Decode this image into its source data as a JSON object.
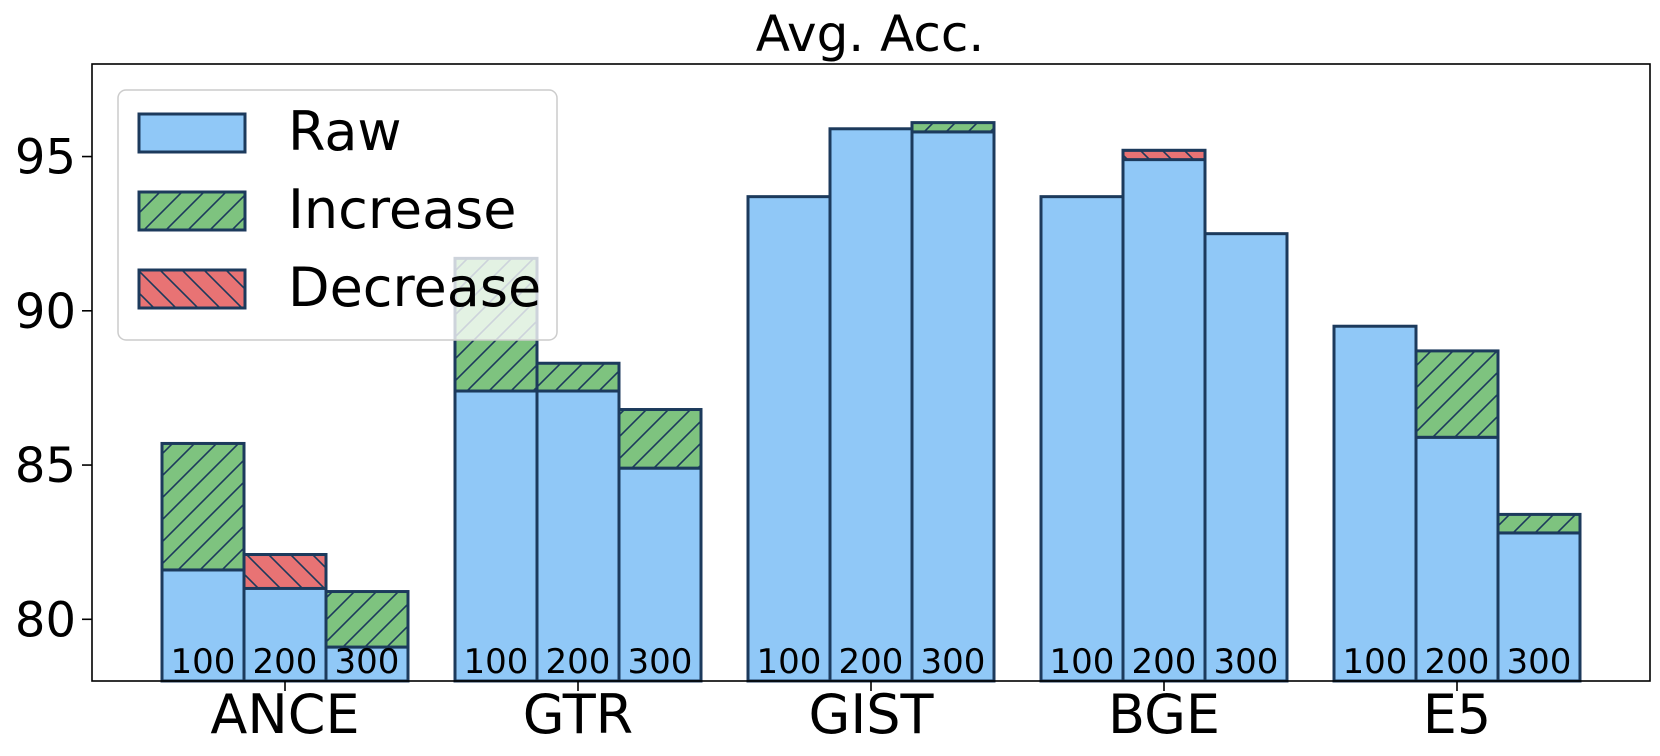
{
  "chart_data": {
    "type": "bar",
    "title": "Avg. Acc.",
    "xlabel": "",
    "ylabel": "",
    "ylim": [
      78,
      98
    ],
    "yticks": [
      80,
      85,
      90,
      95
    ],
    "groups": [
      "ANCE",
      "GTR",
      "GIST",
      "BGE",
      "E5"
    ],
    "subcategories": [
      "100",
      "200",
      "300"
    ],
    "legend": {
      "position": "top-left",
      "entries": [
        "Raw",
        "Increase",
        "Decrease"
      ]
    },
    "colors": {
      "raw": "#90c8f7",
      "increase": "#7ec37f",
      "decrease": "#e87374",
      "edge": "#1c3a5c"
    },
    "bars": [
      {
        "group": "ANCE",
        "size": "100",
        "raw": 81.6,
        "change": 4.1
      },
      {
        "group": "ANCE",
        "size": "200",
        "raw": 82.1,
        "change": -1.1
      },
      {
        "group": "ANCE",
        "size": "300",
        "raw": 79.1,
        "change": 1.8
      },
      {
        "group": "GTR",
        "size": "100",
        "raw": 87.4,
        "change": 4.3
      },
      {
        "group": "GTR",
        "size": "200",
        "raw": 87.4,
        "change": 0.9
      },
      {
        "group": "GTR",
        "size": "300",
        "raw": 84.9,
        "change": 1.9
      },
      {
        "group": "GIST",
        "size": "100",
        "raw": 93.7,
        "change": 0
      },
      {
        "group": "GIST",
        "size": "200",
        "raw": 95.9,
        "change": 0
      },
      {
        "group": "GIST",
        "size": "300",
        "raw": 95.8,
        "change": 0.3
      },
      {
        "group": "BGE",
        "size": "100",
        "raw": 93.7,
        "change": 0
      },
      {
        "group": "BGE",
        "size": "200",
        "raw": 95.2,
        "change": -0.3
      },
      {
        "group": "BGE",
        "size": "300",
        "raw": 92.5,
        "change": 0
      },
      {
        "group": "E5",
        "size": "100",
        "raw": 89.5,
        "change": 0
      },
      {
        "group": "E5",
        "size": "200",
        "raw": 85.9,
        "change": 2.8
      },
      {
        "group": "E5",
        "size": "300",
        "raw": 82.8,
        "change": 0.6
      }
    ]
  }
}
